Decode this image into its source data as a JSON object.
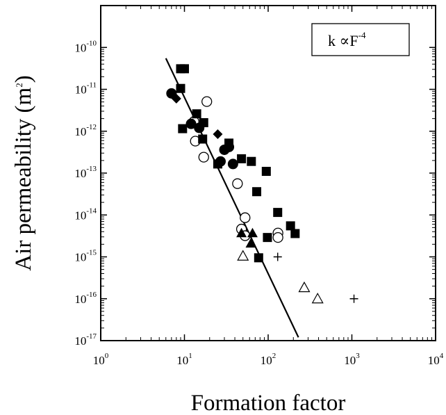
{
  "chart_data": {
    "type": "scatter",
    "xlabel": "Formation factor",
    "ylabel": {
      "text": "Air permeability (m",
      "sup": "2",
      "close": ")"
    },
    "xscale": "log",
    "yscale": "log",
    "xlim": [
      1,
      10000
    ],
    "ylim": [
      1e-17,
      1e-09
    ],
    "x_ticks": [
      {
        "base": "10",
        "exp": "0",
        "value": 1
      },
      {
        "base": "10",
        "exp": "1",
        "value": 10
      },
      {
        "base": "10",
        "exp": "2",
        "value": 100
      },
      {
        "base": "10",
        "exp": "3",
        "value": 1000
      },
      {
        "base": "10",
        "exp": "4",
        "value": 10000
      }
    ],
    "y_ticks": [
      {
        "base": "10",
        "exp": "-17",
        "value": 1e-17
      },
      {
        "base": "10",
        "exp": "-16",
        "value": 1e-16
      },
      {
        "base": "10",
        "exp": "-15",
        "value": 1e-15
      },
      {
        "base": "10",
        "exp": "-14",
        "value": 1e-14
      },
      {
        "base": "10",
        "exp": "-13",
        "value": 1e-13
      },
      {
        "base": "10",
        "exp": "-12",
        "value": 1e-12
      },
      {
        "base": "10",
        "exp": "-11",
        "value": 1e-11
      },
      {
        "base": "10",
        "exp": "-10",
        "value": 1e-10
      }
    ],
    "grid": false,
    "legend": {
      "text": "k ∝F",
      "exp": "-4",
      "position": "top-right"
    },
    "fit_line": {
      "x": [
        6,
        230
      ],
      "y": [
        5.5e-11,
        1.2e-17
      ]
    },
    "series": [
      {
        "marker": "filled-square",
        "points": [
          [
            9,
            3.1e-11
          ],
          [
            10,
            3.1e-11
          ],
          [
            9,
            1.05e-11
          ],
          [
            14,
            2.6e-12
          ],
          [
            17,
            1.6e-12
          ],
          [
            9.5,
            1.15e-12
          ],
          [
            16.5,
            6.5e-13
          ],
          [
            34,
            5.2e-13
          ],
          [
            25,
            1.65e-13
          ],
          [
            48,
            2.2e-13
          ],
          [
            63,
            1.9e-13
          ],
          [
            95,
            1.1e-13
          ],
          [
            73,
            3.6e-14
          ],
          [
            130,
            1.15e-14
          ],
          [
            185,
            5.5e-15
          ],
          [
            210,
            3.6e-15
          ],
          [
            98,
            2.9e-15
          ],
          [
            77,
            9.5e-16
          ]
        ]
      },
      {
        "marker": "filled-circle",
        "points": [
          [
            7,
            8e-12
          ],
          [
            12,
            1.5e-12
          ],
          [
            15,
            1.2e-12
          ],
          [
            27,
            1.9e-13
          ],
          [
            30,
            3.6e-13
          ],
          [
            34,
            4.2e-13
          ],
          [
            38,
            1.65e-13
          ]
        ]
      },
      {
        "marker": "filled-diamond",
        "points": [
          [
            8,
            6e-12
          ],
          [
            25,
            8.5e-13
          ]
        ]
      },
      {
        "marker": "open-circle",
        "points": [
          [
            18.5,
            5.1e-12
          ],
          [
            13,
            1.7e-12
          ],
          [
            13.5,
            5.8e-13
          ],
          [
            17,
            2.4e-13
          ],
          [
            43,
            5.6e-14
          ],
          [
            53,
            8.6e-15
          ],
          [
            48,
            4.6e-15
          ],
          [
            53,
            3.2e-15
          ],
          [
            131,
            3.7e-15
          ],
          [
            131,
            2.9e-15
          ]
        ]
      },
      {
        "marker": "filled-triangle",
        "points": [
          [
            48,
            3.7e-15
          ],
          [
            65,
            3.7e-15
          ],
          [
            62,
            2.1e-15
          ]
        ]
      },
      {
        "marker": "open-triangle",
        "points": [
          [
            50,
            1.05e-15
          ],
          [
            270,
            1.85e-16
          ],
          [
            390,
            1e-16
          ]
        ]
      },
      {
        "marker": "plus",
        "points": [
          [
            130,
            1e-15
          ],
          [
            1060,
            1e-16
          ]
        ]
      }
    ]
  }
}
